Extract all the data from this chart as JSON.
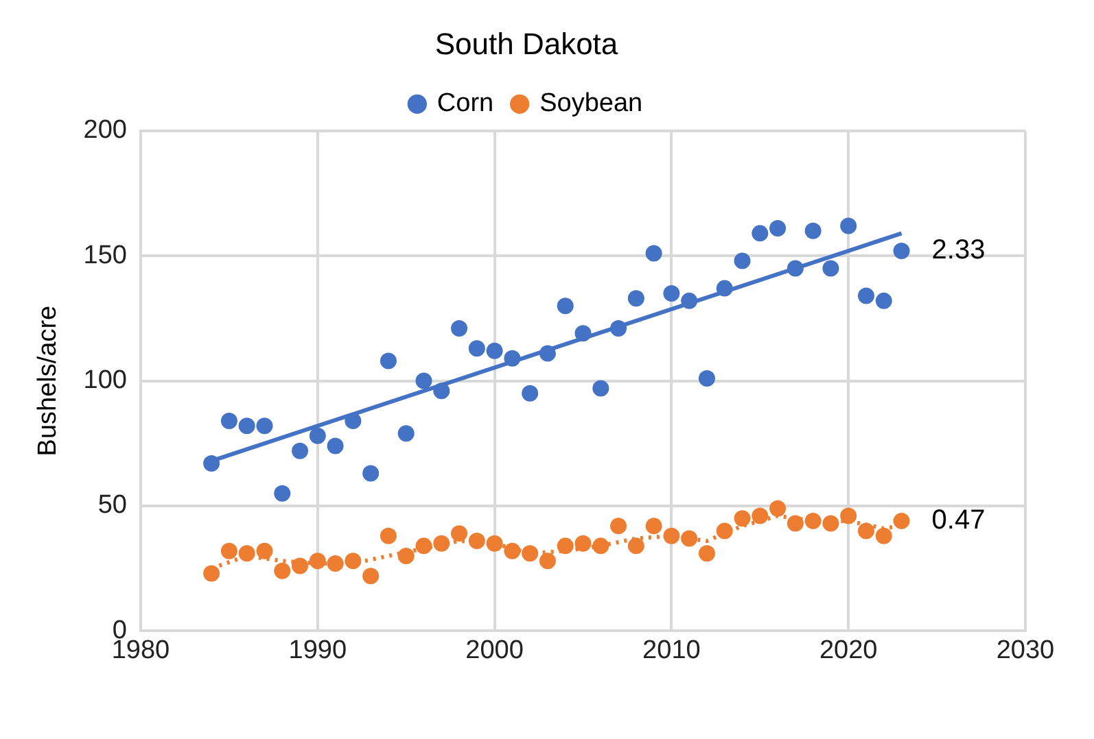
{
  "chart_data": {
    "type": "scatter",
    "title": "South Dakota",
    "ylabel": "Bushels/acre",
    "x": [
      1984,
      1985,
      1986,
      1987,
      1988,
      1989,
      1990,
      1991,
      1992,
      1993,
      1994,
      1995,
      1996,
      1997,
      1998,
      1999,
      2000,
      2001,
      2002,
      2003,
      2004,
      2005,
      2006,
      2007,
      2008,
      2009,
      2010,
      2011,
      2012,
      2013,
      2014,
      2015,
      2016,
      2017,
      2018,
      2019,
      2020,
      2021,
      2022,
      2023
    ],
    "series": [
      {
        "name": "Corn",
        "color": "#4472c4",
        "marker": "circle",
        "values": [
          67,
          84,
          82,
          82,
          55,
          72,
          78,
          74,
          84,
          63,
          108,
          79,
          100,
          96,
          121,
          113,
          112,
          109,
          95,
          111,
          130,
          119,
          97,
          121,
          133,
          151,
          135,
          132,
          101,
          137,
          148,
          159,
          161,
          145,
          160,
          145,
          162,
          134,
          132,
          152
        ]
      },
      {
        "name": "Soybean",
        "color": "#ed7d31",
        "marker": "circle",
        "values": [
          23,
          32,
          31,
          32,
          24,
          26,
          28,
          27,
          28,
          22,
          38,
          30,
          34,
          35,
          39,
          36,
          35,
          32,
          31,
          28,
          34,
          35,
          34,
          42,
          34,
          42,
          38,
          37,
          31,
          40,
          45,
          46,
          49,
          43,
          44,
          43,
          46,
          40,
          38,
          44
        ]
      },
      {
        "type": "line",
        "color": "#4472c4",
        "marker": "none",
        "line_style": "solid",
        "x": [
          1984,
          2023
        ],
        "values": [
          68,
          159
        ]
      },
      {
        "type": "line",
        "color": "#ed7d31",
        "marker": "none",
        "line_style": "dotted",
        "x": [
          1984,
          1986,
          1988,
          1990,
          1992,
          1994,
          1996,
          1998,
          2000,
          2002,
          2004,
          2006,
          2008,
          2010,
          2012,
          2014,
          2016,
          2018,
          2020,
          2022,
          2023
        ],
        "values": [
          25,
          30,
          28,
          27,
          27,
          30,
          33,
          36,
          35,
          31,
          32,
          34,
          37,
          38,
          36,
          42,
          46,
          44,
          44,
          41,
          42
        ]
      }
    ],
    "annotations": [
      {
        "text": "2.33",
        "x": 2023,
        "y": 152
      },
      {
        "text": "0.47",
        "x": 2023,
        "y": 44
      }
    ],
    "xlim": [
      1980,
      2030
    ],
    "xticks": [
      1980,
      1990,
      2000,
      2010,
      2020,
      2030
    ],
    "ylim": [
      0,
      200
    ],
    "yticks": [
      0,
      50,
      100,
      150,
      200
    ],
    "grid": true,
    "legend": "top"
  }
}
